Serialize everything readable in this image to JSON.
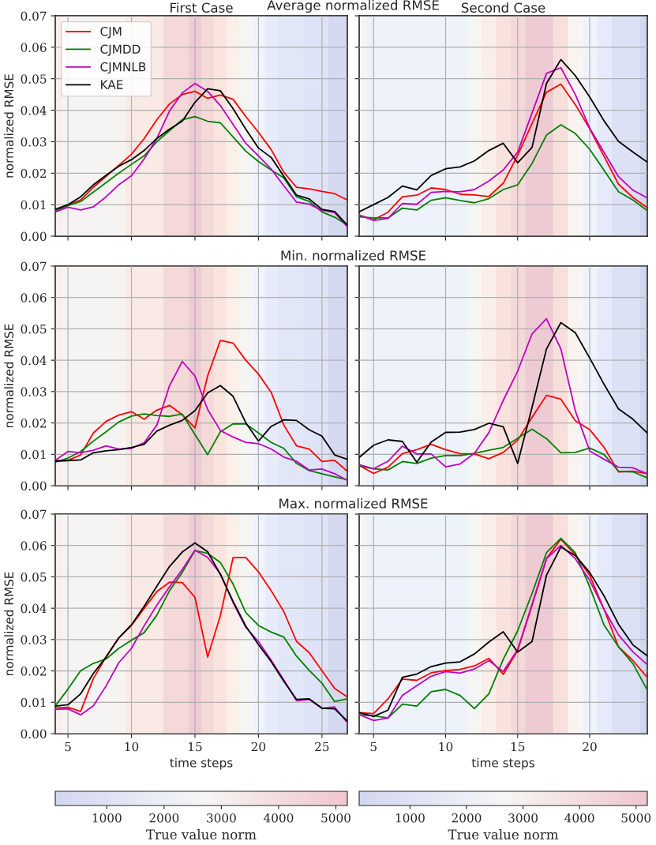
{
  "chart_data": [
    {
      "type": "line",
      "title": "First Case",
      "subtitle": "Average normalized RMSE",
      "ylabel": "normalized RMSE",
      "tick_labels": "y",
      "grid": true,
      "legend": "top left",
      "x": [
        4,
        5,
        6,
        7,
        8,
        9,
        10,
        11,
        12,
        13,
        14,
        15,
        16,
        17,
        18,
        19,
        20,
        21,
        22,
        23,
        24,
        25,
        26,
        27
      ],
      "xlim": [
        4,
        27
      ],
      "xticks": [
        5,
        10,
        15,
        20,
        25
      ],
      "ylim": [
        0,
        0.07
      ],
      "yticks": [
        {
          "value": 0,
          "label": "0.00"
        },
        {
          "value": 0.01,
          "label": "0.01"
        },
        {
          "value": 0.02,
          "label": "0.02"
        },
        {
          "value": 0.03,
          "label": "0.03"
        },
        {
          "value": 0.04,
          "label": "0.04"
        },
        {
          "value": 0.05,
          "label": "0.05"
        },
        {
          "value": 0.06,
          "label": "0.06"
        },
        {
          "value": 0.07,
          "label": "0.07"
        }
      ],
      "bands": [
        {
          "axis": "x",
          "from": 4,
          "to": 4.5,
          "color": "#f8efec"
        },
        {
          "axis": "x",
          "from": 4.5,
          "to": 9.5,
          "color": "#f6f4f3"
        },
        {
          "axis": "x",
          "from": 9.5,
          "to": 12.5,
          "color": "#faeae5"
        },
        {
          "axis": "x",
          "from": 12.5,
          "to": 14.5,
          "color": "#f5d9d8"
        },
        {
          "axis": "x",
          "from": 14.5,
          "to": 15.5,
          "color": "#eecbd3"
        },
        {
          "axis": "x",
          "from": 15.5,
          "to": 16.5,
          "color": "#f3dad8"
        },
        {
          "axis": "x",
          "from": 16.5,
          "to": 17.5,
          "color": "#f9e4de"
        },
        {
          "axis": "x",
          "from": 17.5,
          "to": 18.5,
          "color": "#fbefe9"
        },
        {
          "axis": "x",
          "from": 18.5,
          "to": 19.5,
          "color": "#f5f5f4"
        },
        {
          "axis": "x",
          "from": 19.5,
          "to": 20.5,
          "color": "#f0f3fb"
        },
        {
          "axis": "x",
          "from": 20.5,
          "to": 21.5,
          "color": "#e8ecfa"
        },
        {
          "axis": "x",
          "from": 21.5,
          "to": 23.5,
          "color": "#e2e7f8"
        },
        {
          "axis": "x",
          "from": 23.5,
          "to": 25.5,
          "color": "#dfe3f7"
        },
        {
          "axis": "x",
          "from": 25.5,
          "to": 27,
          "color": "#d5d9ef"
        }
      ],
      "series": [
        {
          "name": "CJM",
          "color": "#ff0000",
          "values": [
            0.0085,
            0.0098,
            0.0115,
            0.0155,
            0.019,
            0.0225,
            0.026,
            0.031,
            0.037,
            0.042,
            0.045,
            0.046,
            0.0438,
            0.0448,
            0.0435,
            0.038,
            0.033,
            0.0275,
            0.0203,
            0.0155,
            0.015,
            0.0142,
            0.0135,
            0.0115
          ]
        },
        {
          "name": "CJMDD",
          "color": "#008000",
          "values": [
            0.008,
            0.0097,
            0.011,
            0.014,
            0.017,
            0.02,
            0.0228,
            0.0255,
            0.03,
            0.0335,
            0.037,
            0.038,
            0.0365,
            0.036,
            0.0315,
            0.027,
            0.0237,
            0.021,
            0.0185,
            0.0125,
            0.011,
            0.0077,
            0.006,
            0.0035
          ]
        },
        {
          "name": "CJMNLB",
          "color": "#bf00bf",
          "values": [
            0.0077,
            0.0092,
            0.0083,
            0.0093,
            0.0125,
            0.0163,
            0.0192,
            0.0245,
            0.031,
            0.0398,
            0.0455,
            0.0485,
            0.046,
            0.0415,
            0.0355,
            0.0295,
            0.0255,
            0.0213,
            0.016,
            0.0108,
            0.0102,
            0.0082,
            0.0075,
            0.003
          ]
        },
        {
          "name": "KAE",
          "color": "#000000",
          "values": [
            0.0085,
            0.01,
            0.0125,
            0.0163,
            0.0193,
            0.0222,
            0.0243,
            0.0272,
            0.031,
            0.034,
            0.0365,
            0.0425,
            0.0468,
            0.0462,
            0.0405,
            0.034,
            0.028,
            0.025,
            0.019,
            0.013,
            0.0118,
            0.0085,
            0.0078,
            0.0035
          ]
        }
      ]
    },
    {
      "type": "line",
      "title": "Second Case",
      "tick_labels": false,
      "grid": true,
      "x": [
        4,
        5,
        6,
        7,
        8,
        9,
        10,
        11,
        12,
        13,
        14,
        15,
        16,
        17,
        18,
        19,
        20,
        21,
        22,
        23,
        24
      ],
      "xlim": [
        4,
        24
      ],
      "xticks": [
        5,
        10,
        15,
        20
      ],
      "ylim": [
        0,
        0.07
      ],
      "yticks": [
        0,
        0.01,
        0.02,
        0.03,
        0.04,
        0.05,
        0.06,
        0.07
      ],
      "bands": [
        {
          "axis": "x",
          "from": 4,
          "to": 4.5,
          "color": "#f5f5f4"
        },
        {
          "axis": "x",
          "from": 4.5,
          "to": 11.5,
          "color": "#edf2fb"
        },
        {
          "axis": "x",
          "from": 11.5,
          "to": 12.5,
          "color": "#f5f5f4"
        },
        {
          "axis": "x",
          "from": 12.5,
          "to": 13.5,
          "color": "#fbeee8"
        },
        {
          "axis": "x",
          "from": 13.5,
          "to": 14.5,
          "color": "#f9e2dd"
        },
        {
          "axis": "x",
          "from": 14.5,
          "to": 15.5,
          "color": "#f5d9d8"
        },
        {
          "axis": "x",
          "from": 15.5,
          "to": 17.5,
          "color": "#eecbd3"
        },
        {
          "axis": "x",
          "from": 17.5,
          "to": 18.5,
          "color": "#f7e0dc"
        },
        {
          "axis": "x",
          "from": 18.5,
          "to": 19.5,
          "color": "#faf4f0"
        },
        {
          "axis": "x",
          "from": 19.5,
          "to": 20.5,
          "color": "#f0f3fb"
        },
        {
          "axis": "x",
          "from": 20.5,
          "to": 21.5,
          "color": "#e6ebfb"
        },
        {
          "axis": "x",
          "from": 21.5,
          "to": 23.5,
          "color": "#dde1f5"
        },
        {
          "axis": "x",
          "from": 23.5,
          "to": 24,
          "color": "#d3d7ee"
        }
      ],
      "series": [
        {
          "color": "#ff0000",
          "values": [
            0.0067,
            0.0052,
            0.0076,
            0.0125,
            0.013,
            0.0153,
            0.0148,
            0.0133,
            0.0131,
            0.0126,
            0.0168,
            0.0257,
            0.0358,
            0.0457,
            0.0483,
            0.0418,
            0.0341,
            0.0253,
            0.0165,
            0.0123,
            0.009
          ]
        },
        {
          "color": "#008000",
          "values": [
            0.0061,
            0.0058,
            0.0058,
            0.0089,
            0.0083,
            0.0114,
            0.0122,
            0.0113,
            0.0106,
            0.0119,
            0.0148,
            0.0163,
            0.0231,
            0.0321,
            0.0354,
            0.0326,
            0.0276,
            0.0209,
            0.0141,
            0.0115,
            0.0081
          ]
        },
        {
          "color": "#bf00bf",
          "values": [
            0.0067,
            0.005,
            0.0056,
            0.0104,
            0.0101,
            0.0139,
            0.0142,
            0.0141,
            0.0148,
            0.0175,
            0.021,
            0.0267,
            0.0391,
            0.0517,
            0.0535,
            0.045,
            0.0343,
            0.0266,
            0.0189,
            0.0146,
            0.0121
          ]
        },
        {
          "color": "#000000",
          "values": [
            0.0077,
            0.01,
            0.0123,
            0.0159,
            0.0147,
            0.0193,
            0.0214,
            0.022,
            0.0239,
            0.0272,
            0.0295,
            0.0233,
            0.0282,
            0.0485,
            0.0561,
            0.051,
            0.0442,
            0.0366,
            0.0301,
            0.0267,
            0.0235
          ]
        }
      ]
    },
    {
      "type": "line",
      "subtitle": "Min. normalized RMSE",
      "ylabel": "normalized RMSE",
      "tick_labels": "y",
      "grid": true,
      "x": [
        4,
        5,
        6,
        7,
        8,
        9,
        10,
        11,
        12,
        13,
        14,
        15,
        16,
        17,
        18,
        19,
        20,
        21,
        22,
        23,
        24,
        25,
        26,
        27
      ],
      "xlim": [
        4,
        27
      ],
      "xticks": [
        5,
        10,
        15,
        20,
        25
      ],
      "ylim": [
        0,
        0.07
      ],
      "yticks": [
        {
          "value": 0,
          "label": "0.00"
        },
        {
          "value": 0.01,
          "label": "0.01"
        },
        {
          "value": 0.02,
          "label": "0.02"
        },
        {
          "value": 0.03,
          "label": "0.03"
        },
        {
          "value": 0.04,
          "label": "0.04"
        },
        {
          "value": 0.05,
          "label": "0.05"
        },
        {
          "value": 0.06,
          "label": "0.06"
        },
        {
          "value": 0.07,
          "label": "0.07"
        }
      ],
      "bands": [
        {
          "axis": "x",
          "from": 4,
          "to": 4.5,
          "color": "#f8efec"
        },
        {
          "axis": "x",
          "from": 4.5,
          "to": 9.5,
          "color": "#f6f4f3"
        },
        {
          "axis": "x",
          "from": 9.5,
          "to": 12.5,
          "color": "#faeae5"
        },
        {
          "axis": "x",
          "from": 12.5,
          "to": 14.5,
          "color": "#f5d9d8"
        },
        {
          "axis": "x",
          "from": 14.5,
          "to": 15.5,
          "color": "#eecbd3"
        },
        {
          "axis": "x",
          "from": 15.5,
          "to": 16.5,
          "color": "#f3dad8"
        },
        {
          "axis": "x",
          "from": 16.5,
          "to": 17.5,
          "color": "#f9e4de"
        },
        {
          "axis": "x",
          "from": 17.5,
          "to": 18.5,
          "color": "#fbefe9"
        },
        {
          "axis": "x",
          "from": 18.5,
          "to": 19.5,
          "color": "#f5f5f4"
        },
        {
          "axis": "x",
          "from": 19.5,
          "to": 20.5,
          "color": "#f0f3fb"
        },
        {
          "axis": "x",
          "from": 20.5,
          "to": 21.5,
          "color": "#e8ecfa"
        },
        {
          "axis": "x",
          "from": 21.5,
          "to": 23.5,
          "color": "#e2e7f8"
        },
        {
          "axis": "x",
          "from": 23.5,
          "to": 25.5,
          "color": "#dfe3f7"
        },
        {
          "axis": "x",
          "from": 25.5,
          "to": 27,
          "color": "#d5d9ef"
        }
      ],
      "series": [
        {
          "color": "#ff0000",
          "values": [
            0.008,
            0.0081,
            0.0098,
            0.0168,
            0.0205,
            0.0225,
            0.0236,
            0.0212,
            0.0241,
            0.0256,
            0.0226,
            0.0184,
            0.035,
            0.0463,
            0.0455,
            0.04,
            0.0356,
            0.0298,
            0.0193,
            0.0127,
            0.0117,
            0.0077,
            0.0081,
            0.0046
          ]
        },
        {
          "color": "#008000",
          "values": [
            0.0075,
            0.0088,
            0.0109,
            0.0142,
            0.0172,
            0.0203,
            0.0222,
            0.0229,
            0.0224,
            0.0221,
            0.0228,
            0.0163,
            0.0099,
            0.0172,
            0.0197,
            0.0197,
            0.0168,
            0.0138,
            0.0119,
            0.0071,
            0.0048,
            0.0038,
            0.0028,
            0.0019
          ]
        },
        {
          "color": "#bf00bf",
          "values": [
            0.0081,
            0.0109,
            0.0105,
            0.0113,
            0.0127,
            0.0117,
            0.0119,
            0.0137,
            0.0193,
            0.0319,
            0.0396,
            0.035,
            0.0243,
            0.0176,
            0.0155,
            0.0138,
            0.0134,
            0.0117,
            0.0091,
            0.0078,
            0.005,
            0.0053,
            0.0038,
            0.0017
          ]
        },
        {
          "color": "#000000",
          "values": [
            0.0078,
            0.008,
            0.0082,
            0.0105,
            0.0111,
            0.0115,
            0.0122,
            0.0132,
            0.0174,
            0.0193,
            0.0208,
            0.0239,
            0.0296,
            0.0319,
            0.0285,
            0.0201,
            0.0142,
            0.0189,
            0.021,
            0.0208,
            0.0178,
            0.0158,
            0.0098,
            0.0084
          ]
        }
      ]
    },
    {
      "type": "line",
      "tick_labels": false,
      "grid": true,
      "x": [
        4,
        5,
        6,
        7,
        8,
        9,
        10,
        11,
        12,
        13,
        14,
        15,
        16,
        17,
        18,
        19,
        20,
        21,
        22,
        23,
        24
      ],
      "xlim": [
        4,
        24
      ],
      "xticks": [
        5,
        10,
        15,
        20
      ],
      "ylim": [
        0,
        0.07
      ],
      "yticks": [
        0,
        0.01,
        0.02,
        0.03,
        0.04,
        0.05,
        0.06,
        0.07
      ],
      "bands": [
        {
          "axis": "x",
          "from": 4,
          "to": 4.5,
          "color": "#f5f5f4"
        },
        {
          "axis": "x",
          "from": 4.5,
          "to": 11.5,
          "color": "#edf2fb"
        },
        {
          "axis": "x",
          "from": 11.5,
          "to": 12.5,
          "color": "#f5f5f4"
        },
        {
          "axis": "x",
          "from": 12.5,
          "to": 13.5,
          "color": "#fbeee8"
        },
        {
          "axis": "x",
          "from": 13.5,
          "to": 14.5,
          "color": "#f9e2dd"
        },
        {
          "axis": "x",
          "from": 14.5,
          "to": 15.5,
          "color": "#f5d9d8"
        },
        {
          "axis": "x",
          "from": 15.5,
          "to": 17.5,
          "color": "#eecbd3"
        },
        {
          "axis": "x",
          "from": 17.5,
          "to": 18.5,
          "color": "#f7e0dc"
        },
        {
          "axis": "x",
          "from": 18.5,
          "to": 19.5,
          "color": "#faf4f0"
        },
        {
          "axis": "x",
          "from": 19.5,
          "to": 20.5,
          "color": "#f0f3fb"
        },
        {
          "axis": "x",
          "from": 20.5,
          "to": 21.5,
          "color": "#e6ebfb"
        },
        {
          "axis": "x",
          "from": 21.5,
          "to": 23.5,
          "color": "#dde1f5"
        },
        {
          "axis": "x",
          "from": 23.5,
          "to": 24,
          "color": "#d3d7ee"
        }
      ],
      "series": [
        {
          "color": "#ff0000",
          "values": [
            0.0065,
            0.0039,
            0.0059,
            0.0102,
            0.0115,
            0.0132,
            0.0115,
            0.0102,
            0.0101,
            0.0086,
            0.0106,
            0.0145,
            0.0218,
            0.0288,
            0.0276,
            0.0207,
            0.0179,
            0.0122,
            0.0044,
            0.0046,
            0.0038
          ]
        },
        {
          "color": "#008000",
          "values": [
            0.0063,
            0.0054,
            0.005,
            0.0077,
            0.0071,
            0.0088,
            0.0096,
            0.0096,
            0.0103,
            0.0113,
            0.0122,
            0.0151,
            0.018,
            0.015,
            0.0105,
            0.0106,
            0.012,
            0.0099,
            0.0046,
            0.0044,
            0.0025
          ]
        },
        {
          "color": "#bf00bf",
          "values": [
            0.0067,
            0.0054,
            0.0078,
            0.0126,
            0.0101,
            0.0101,
            0.006,
            0.0069,
            0.0103,
            0.0169,
            0.0272,
            0.0365,
            0.0484,
            0.0532,
            0.0436,
            0.0239,
            0.0111,
            0.0084,
            0.0059,
            0.0057,
            0.0038
          ]
        },
        {
          "color": "#000000",
          "values": [
            0.009,
            0.0129,
            0.0146,
            0.0141,
            0.0075,
            0.0139,
            0.017,
            0.0171,
            0.0179,
            0.0199,
            0.0188,
            0.0071,
            0.025,
            0.0436,
            0.052,
            0.0488,
            0.0407,
            0.0323,
            0.0245,
            0.0212,
            0.0168
          ]
        }
      ]
    },
    {
      "type": "line",
      "subtitle": "Max. normalized RMSE",
      "ylabel": "normalized RMSE",
      "xlabel": "time steps",
      "grid": true,
      "clabel": "True value norm",
      "x": [
        4,
        5,
        6,
        7,
        8,
        9,
        10,
        11,
        12,
        13,
        14,
        15,
        16,
        17,
        18,
        19,
        20,
        21,
        22,
        23,
        24,
        25,
        26,
        27
      ],
      "xlim": [
        4,
        27
      ],
      "xticks": [
        5,
        10,
        15,
        20,
        25
      ],
      "ylim": [
        0,
        0.07
      ],
      "yticks": [
        {
          "value": 0,
          "label": "0.00"
        },
        {
          "value": 0.01,
          "label": "0.01"
        },
        {
          "value": 0.02,
          "label": "0.02"
        },
        {
          "value": 0.03,
          "label": "0.03"
        },
        {
          "value": 0.04,
          "label": "0.04"
        },
        {
          "value": 0.05,
          "label": "0.05"
        },
        {
          "value": 0.06,
          "label": "0.06"
        },
        {
          "value": 0.07,
          "label": "0.07"
        }
      ],
      "bands": [
        {
          "axis": "x",
          "from": 4,
          "to": 4.5,
          "color": "#f8efec"
        },
        {
          "axis": "x",
          "from": 4.5,
          "to": 9.5,
          "color": "#f6f4f3"
        },
        {
          "axis": "x",
          "from": 9.5,
          "to": 12.5,
          "color": "#faeae5"
        },
        {
          "axis": "x",
          "from": 12.5,
          "to": 14.5,
          "color": "#f5d9d8"
        },
        {
          "axis": "x",
          "from": 14.5,
          "to": 15.5,
          "color": "#eecbd3"
        },
        {
          "axis": "x",
          "from": 15.5,
          "to": 16.5,
          "color": "#f3dad8"
        },
        {
          "axis": "x",
          "from": 16.5,
          "to": 17.5,
          "color": "#f9e4de"
        },
        {
          "axis": "x",
          "from": 17.5,
          "to": 18.5,
          "color": "#fbefe9"
        },
        {
          "axis": "x",
          "from": 18.5,
          "to": 19.5,
          "color": "#f5f5f4"
        },
        {
          "axis": "x",
          "from": 19.5,
          "to": 20.5,
          "color": "#f0f3fb"
        },
        {
          "axis": "x",
          "from": 20.5,
          "to": 21.5,
          "color": "#e8ecfa"
        },
        {
          "axis": "x",
          "from": 21.5,
          "to": 23.5,
          "color": "#e2e7f8"
        },
        {
          "axis": "x",
          "from": 23.5,
          "to": 25.5,
          "color": "#dfe3f7"
        },
        {
          "axis": "x",
          "from": 25.5,
          "to": 27,
          "color": "#d5d9ef"
        }
      ],
      "clim": [
        100,
        5200
      ],
      "cticks": [
        1000,
        2000,
        3000,
        4000,
        5000
      ],
      "series": [
        {
          "color": "#ff0000",
          "values": [
            0.0082,
            0.0084,
            0.0071,
            0.0176,
            0.0245,
            0.0305,
            0.0345,
            0.0399,
            0.0453,
            0.0483,
            0.0482,
            0.0435,
            0.0244,
            0.0376,
            0.0561,
            0.0562,
            0.0516,
            0.0456,
            0.0389,
            0.0294,
            0.0258,
            0.0201,
            0.0144,
            0.0117
          ]
        },
        {
          "color": "#008000",
          "values": [
            0.0088,
            0.0142,
            0.0201,
            0.0224,
            0.0238,
            0.0272,
            0.0298,
            0.0322,
            0.0378,
            0.0456,
            0.0514,
            0.0584,
            0.0575,
            0.0546,
            0.0477,
            0.0386,
            0.0345,
            0.0324,
            0.0308,
            0.0247,
            0.0202,
            0.0161,
            0.0102,
            0.0111
          ]
        },
        {
          "color": "#bf00bf",
          "values": [
            0.0077,
            0.0079,
            0.006,
            0.0089,
            0.0152,
            0.0226,
            0.0272,
            0.0344,
            0.041,
            0.0468,
            0.0523,
            0.0585,
            0.0562,
            0.051,
            0.0418,
            0.0339,
            0.0294,
            0.0234,
            0.0171,
            0.0105,
            0.0109,
            0.0081,
            0.0085,
            0.0035
          ]
        },
        {
          "color": "#000000",
          "values": [
            0.0088,
            0.0092,
            0.0127,
            0.0192,
            0.0244,
            0.0305,
            0.0347,
            0.0406,
            0.047,
            0.0533,
            0.0579,
            0.0608,
            0.058,
            0.0508,
            0.0422,
            0.0343,
            0.0284,
            0.023,
            0.0167,
            0.0109,
            0.0111,
            0.0081,
            0.0079,
            0.004
          ]
        }
      ]
    },
    {
      "type": "line",
      "xlabel": "time steps",
      "tick_labels": "x",
      "grid": true,
      "clabel": "True value norm",
      "x": [
        4,
        5,
        6,
        7,
        8,
        9,
        10,
        11,
        12,
        13,
        14,
        15,
        16,
        17,
        18,
        19,
        20,
        21,
        22,
        23,
        24
      ],
      "xlim": [
        4,
        24
      ],
      "xticks": [
        5,
        10,
        15,
        20
      ],
      "ylim": [
        0,
        0.07
      ],
      "yticks": [
        0,
        0.01,
        0.02,
        0.03,
        0.04,
        0.05,
        0.06,
        0.07
      ],
      "bands": [
        {
          "axis": "x",
          "from": 4,
          "to": 4.5,
          "color": "#f5f5f4"
        },
        {
          "axis": "x",
          "from": 4.5,
          "to": 11.5,
          "color": "#edf2fb"
        },
        {
          "axis": "x",
          "from": 11.5,
          "to": 12.5,
          "color": "#f5f5f4"
        },
        {
          "axis": "x",
          "from": 12.5,
          "to": 13.5,
          "color": "#fbeee8"
        },
        {
          "axis": "x",
          "from": 13.5,
          "to": 14.5,
          "color": "#f9e2dd"
        },
        {
          "axis": "x",
          "from": 14.5,
          "to": 15.5,
          "color": "#f5d9d8"
        },
        {
          "axis": "x",
          "from": 15.5,
          "to": 17.5,
          "color": "#eecbd3"
        },
        {
          "axis": "x",
          "from": 17.5,
          "to": 18.5,
          "color": "#f7e0dc"
        },
        {
          "axis": "x",
          "from": 18.5,
          "to": 19.5,
          "color": "#faf4f0"
        },
        {
          "axis": "x",
          "from": 19.5,
          "to": 20.5,
          "color": "#f0f3fb"
        },
        {
          "axis": "x",
          "from": 20.5,
          "to": 21.5,
          "color": "#e6ebfb"
        },
        {
          "axis": "x",
          "from": 21.5,
          "to": 23.5,
          "color": "#dde1f5"
        },
        {
          "axis": "x",
          "from": 23.5,
          "to": 24,
          "color": "#d3d7ee"
        }
      ],
      "clim": [
        100,
        5200
      ],
      "cticks": [
        1000,
        2000,
        3000,
        4000,
        5000
      ],
      "series": [
        {
          "color": "#ff0000",
          "values": [
            0.0067,
            0.0064,
            0.0111,
            0.0174,
            0.017,
            0.0194,
            0.0201,
            0.0205,
            0.0216,
            0.024,
            0.0189,
            0.0265,
            0.0409,
            0.0558,
            0.062,
            0.057,
            0.0505,
            0.0396,
            0.0277,
            0.0233,
            0.0179
          ]
        },
        {
          "color": "#008000",
          "values": [
            0.006,
            0.0057,
            0.005,
            0.0094,
            0.0088,
            0.0134,
            0.0141,
            0.0122,
            0.008,
            0.0127,
            0.0237,
            0.0328,
            0.0447,
            0.0577,
            0.0623,
            0.0577,
            0.0468,
            0.0346,
            0.0277,
            0.0223,
            0.0139
          ]
        },
        {
          "color": "#bf00bf",
          "values": [
            0.0061,
            0.0042,
            0.005,
            0.0122,
            0.0153,
            0.0183,
            0.0198,
            0.0193,
            0.0206,
            0.0233,
            0.0198,
            0.0268,
            0.0413,
            0.0558,
            0.06,
            0.0558,
            0.0489,
            0.0396,
            0.0315,
            0.0261,
            0.022
          ]
        },
        {
          "color": "#000000",
          "values": [
            0.0067,
            0.0055,
            0.0075,
            0.018,
            0.019,
            0.0214,
            0.0225,
            0.0229,
            0.0254,
            0.0292,
            0.0325,
            0.026,
            0.0294,
            0.0505,
            0.0595,
            0.0568,
            0.0514,
            0.0439,
            0.0349,
            0.0283,
            0.0248
          ]
        }
      ]
    }
  ]
}
